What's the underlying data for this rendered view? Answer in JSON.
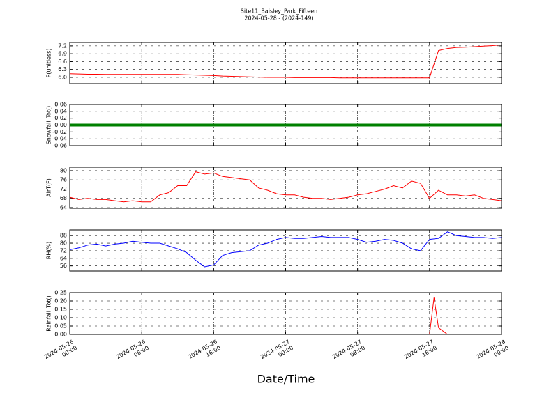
{
  "chart_data": [
    {
      "type": "line",
      "title": "Site11_Baisley_Park_Fifteen",
      "subtitle": "2024-05-28 - (2024-149)",
      "ylabel": "P(unitless)",
      "grid": true,
      "xlim": [
        "2024-05-26 00:00",
        "2024-05-28 00:00"
      ],
      "ylim": [
        5.76,
        7.33
      ],
      "yticks": [
        {
          "value": 6.0,
          "label": "6.0"
        },
        6.3,
        6.6,
        6.9,
        7.2
      ],
      "x": [
        "2024-05-26 00:00",
        "2024-05-26 01:00",
        "2024-05-26 02:00",
        "2024-05-26 03:00",
        "2024-05-26 04:00",
        "2024-05-26 05:00",
        "2024-05-26 06:00",
        "2024-05-26 07:00",
        "2024-05-26 08:00",
        "2024-05-26 09:00",
        "2024-05-26 10:00",
        "2024-05-26 11:00",
        "2024-05-26 12:00",
        "2024-05-26 13:00",
        "2024-05-26 14:00",
        "2024-05-26 15:00",
        "2024-05-26 16:00",
        "2024-05-26 17:00",
        "2024-05-26 18:00",
        "2024-05-26 19:00",
        "2024-05-26 20:00",
        "2024-05-26 21:00",
        "2024-05-26 22:00",
        "2024-05-26 23:00",
        "2024-05-27 00:00",
        "2024-05-27 01:00",
        "2024-05-27 02:00",
        "2024-05-27 03:00",
        "2024-05-27 04:00",
        "2024-05-27 05:00",
        "2024-05-27 06:00",
        "2024-05-27 07:00",
        "2024-05-27 08:00",
        "2024-05-27 09:00",
        "2024-05-27 10:00",
        "2024-05-27 11:00",
        "2024-05-27 12:00",
        "2024-05-27 13:00",
        "2024-05-27 14:00",
        "2024-05-27 15:00",
        "2024-05-27 16:00",
        "2024-05-27 17:00",
        "2024-05-27 18:00",
        "2024-05-27 19:00",
        "2024-05-27 20:00",
        "2024-05-27 21:00",
        "2024-05-27 22:00",
        "2024-05-27 23:00",
        "2024-05-28 00:00"
      ],
      "series": [
        {
          "color": "#ff0000",
          "values": [
            6.14,
            6.13,
            6.12,
            6.12,
            6.11,
            6.11,
            6.11,
            6.11,
            6.11,
            6.11,
            6.11,
            6.11,
            6.11,
            6.1,
            6.09,
            6.08,
            6.07,
            6.05,
            6.04,
            6.03,
            6.02,
            6.01,
            6.0,
            6.0,
            6.0,
            5.99,
            5.99,
            5.99,
            5.99,
            5.99,
            5.98,
            5.98,
            5.98,
            5.98,
            5.98,
            5.98,
            5.98,
            5.98,
            5.98,
            5.98,
            5.98,
            7.02,
            7.1,
            7.14,
            7.15,
            7.17,
            7.19,
            7.21,
            7.24
          ]
        }
      ]
    },
    {
      "type": "line",
      "ylabel": "Snowfall_Tot()",
      "grid": true,
      "xlim": [
        "2024-05-26 00:00",
        "2024-05-28 00:00"
      ],
      "ylim": [
        -0.06,
        0.06
      ],
      "yticks": [
        {
          "value": -0.06,
          "label": "-0.06"
        },
        {
          "value": -0.04,
          "label": "-0.04"
        },
        {
          "value": -0.02,
          "label": "-0.02"
        },
        {
          "value": 0,
          "label": "0.00"
        },
        {
          "value": 0.02,
          "label": "0.02"
        },
        {
          "value": 0.04,
          "label": "0.04"
        },
        0.06
      ],
      "x": [
        "2024-05-26 00:00",
        "2024-05-26 01:00",
        "2024-05-26 02:00",
        "2024-05-26 03:00",
        "2024-05-26 04:00",
        "2024-05-26 05:00",
        "2024-05-26 06:00",
        "2024-05-26 07:00",
        "2024-05-26 08:00",
        "2024-05-26 09:00",
        "2024-05-26 10:00",
        "2024-05-26 11:00",
        "2024-05-26 12:00",
        "2024-05-26 13:00",
        "2024-05-26 14:00",
        "2024-05-26 15:00",
        "2024-05-26 16:00",
        "2024-05-26 17:00",
        "2024-05-26 18:00",
        "2024-05-26 19:00",
        "2024-05-26 20:00",
        "2024-05-26 21:00",
        "2024-05-26 22:00",
        "2024-05-26 23:00",
        "2024-05-27 00:00",
        "2024-05-27 01:00",
        "2024-05-27 02:00",
        "2024-05-27 03:00",
        "2024-05-27 04:00",
        "2024-05-27 05:00",
        "2024-05-27 06:00",
        "2024-05-27 07:00",
        "2024-05-27 08:00",
        "2024-05-27 09:00",
        "2024-05-27 10:00",
        "2024-05-27 11:00",
        "2024-05-27 12:00",
        "2024-05-27 13:00",
        "2024-05-27 14:00",
        "2024-05-27 15:00",
        "2024-05-27 16:00",
        "2024-05-27 17:00",
        "2024-05-27 18:00",
        "2024-05-27 19:00",
        "2024-05-27 20:00",
        "2024-05-27 21:00",
        "2024-05-27 22:00",
        "2024-05-27 23:00",
        "2024-05-28 00:00"
      ],
      "series": [
        {
          "color": "#008000",
          "values": [
            0,
            0,
            0,
            0,
            0,
            0,
            0,
            0,
            0,
            0,
            0,
            0,
            0,
            0,
            0,
            0,
            0,
            0,
            0,
            0,
            0,
            0,
            0,
            0,
            0,
            0,
            0,
            0,
            0,
            0,
            0,
            0,
            0,
            0,
            0,
            0,
            0,
            0,
            0,
            0,
            0,
            0,
            0,
            0,
            0,
            0,
            0,
            0,
            0
          ]
        }
      ]
    },
    {
      "type": "line",
      "ylabel": "AirT(F)",
      "grid": true,
      "xlim": [
        "2024-05-26 00:00",
        "2024-05-28 00:00"
      ],
      "ylim": [
        63.7,
        81.5
      ],
      "yticks": [
        64,
        68,
        72,
        76,
        80
      ],
      "x": [
        "2024-05-26 00:00",
        "2024-05-26 01:00",
        "2024-05-26 02:00",
        "2024-05-26 03:00",
        "2024-05-26 04:00",
        "2024-05-26 05:00",
        "2024-05-26 06:00",
        "2024-05-26 07:00",
        "2024-05-26 08:00",
        "2024-05-26 09:00",
        "2024-05-26 10:00",
        "2024-05-26 11:00",
        "2024-05-26 12:00",
        "2024-05-26 13:00",
        "2024-05-26 14:00",
        "2024-05-26 15:00",
        "2024-05-26 16:00",
        "2024-05-26 17:00",
        "2024-05-26 18:00",
        "2024-05-26 19:00",
        "2024-05-26 20:00",
        "2024-05-26 21:00",
        "2024-05-26 22:00",
        "2024-05-26 23:00",
        "2024-05-27 00:00",
        "2024-05-27 01:00",
        "2024-05-27 02:00",
        "2024-05-27 03:00",
        "2024-05-27 04:00",
        "2024-05-27 05:00",
        "2024-05-27 06:00",
        "2024-05-27 07:00",
        "2024-05-27 08:00",
        "2024-05-27 09:00",
        "2024-05-27 10:00",
        "2024-05-27 11:00",
        "2024-05-27 12:00",
        "2024-05-27 13:00",
        "2024-05-27 14:00",
        "2024-05-27 15:00",
        "2024-05-27 16:00",
        "2024-05-27 17:00",
        "2024-05-27 18:00",
        "2024-05-27 19:00",
        "2024-05-27 20:00",
        "2024-05-27 21:00",
        "2024-05-27 22:00",
        "2024-05-27 23:00",
        "2024-05-28 00:00"
      ],
      "series": [
        {
          "color": "#ff0000",
          "values": [
            68.5,
            67.5,
            68,
            67.5,
            67.5,
            67,
            66.5,
            67,
            66.5,
            66.5,
            69.5,
            70.5,
            73.5,
            73.5,
            79.5,
            78.5,
            79,
            77.5,
            77,
            76.5,
            76,
            72.5,
            71.5,
            70,
            69.5,
            69.5,
            68.5,
            68,
            68,
            67.5,
            68,
            68.5,
            69.5,
            70,
            71,
            72,
            73.5,
            72.5,
            75.5,
            74.5,
            68,
            71.5,
            69.5,
            69.5,
            69,
            69.5,
            68,
            67.5,
            67
          ]
        }
      ]
    },
    {
      "type": "line",
      "ylabel": "RH(%)",
      "grid": true,
      "xlim": [
        "2024-05-26 00:00",
        "2024-05-28 00:00"
      ],
      "ylim": [
        50.6,
        94
      ],
      "yticks": [
        56,
        64,
        72,
        80,
        88
      ],
      "x": [
        "2024-05-26 00:00",
        "2024-05-26 01:00",
        "2024-05-26 02:00",
        "2024-05-26 03:00",
        "2024-05-26 04:00",
        "2024-05-26 05:00",
        "2024-05-26 06:00",
        "2024-05-26 07:00",
        "2024-05-26 08:00",
        "2024-05-26 09:00",
        "2024-05-26 10:00",
        "2024-05-26 11:00",
        "2024-05-26 12:00",
        "2024-05-26 13:00",
        "2024-05-26 14:00",
        "2024-05-26 15:00",
        "2024-05-26 16:00",
        "2024-05-26 17:00",
        "2024-05-26 18:00",
        "2024-05-26 19:00",
        "2024-05-26 20:00",
        "2024-05-26 21:00",
        "2024-05-26 22:00",
        "2024-05-26 23:00",
        "2024-05-27 00:00",
        "2024-05-27 01:00",
        "2024-05-27 02:00",
        "2024-05-27 03:00",
        "2024-05-27 04:00",
        "2024-05-27 05:00",
        "2024-05-27 06:00",
        "2024-05-27 07:00",
        "2024-05-27 08:00",
        "2024-05-27 09:00",
        "2024-05-27 10:00",
        "2024-05-27 11:00",
        "2024-05-27 12:00",
        "2024-05-27 13:00",
        "2024-05-27 14:00",
        "2024-05-27 15:00",
        "2024-05-27 16:00",
        "2024-05-27 17:00",
        "2024-05-27 18:00",
        "2024-05-27 19:00",
        "2024-05-27 20:00",
        "2024-05-27 21:00",
        "2024-05-27 22:00",
        "2024-05-27 23:00",
        "2024-05-28 00:00"
      ],
      "series": [
        {
          "color": "#0000ff",
          "values": [
            73,
            75,
            78,
            79,
            77,
            79,
            80,
            82,
            81,
            80,
            80,
            77,
            74,
            70,
            62,
            55,
            57,
            67,
            70,
            71,
            72,
            78,
            80,
            84,
            86,
            85,
            85,
            86,
            87,
            86,
            86,
            86,
            84,
            81,
            82,
            84,
            83,
            80,
            74,
            72,
            84,
            85,
            92,
            88,
            87,
            86,
            86,
            85,
            86
          ]
        }
      ]
    },
    {
      "type": "line",
      "ylabel": "Rainfall_Tot()",
      "xlabel": "Date/Time",
      "grid": true,
      "xlim": [
        "2024-05-26 00:00",
        "2024-05-28 00:00"
      ],
      "ylim": [
        0,
        0.25
      ],
      "yticks": [
        {
          "value": 0,
          "label": "0.00"
        },
        {
          "value": 0.05,
          "label": "0.05"
        },
        {
          "value": 0.1,
          "label": "0.10"
        },
        0.15,
        {
          "value": 0.2,
          "label": "0.20"
        },
        0.25
      ],
      "xticks": [
        {
          "value": "2024-05-26 00:00",
          "label": "2024-05-26\n00:00"
        },
        {
          "value": "2024-05-26 08:00",
          "label": "2024-05-26\n08:00"
        },
        {
          "value": "2024-05-26 16:00",
          "label": "2024-05-26\n16:00"
        },
        {
          "value": "2024-05-27 00:00",
          "label": "2024-05-27\n00:00"
        },
        {
          "value": "2024-05-27 08:00",
          "label": "2024-05-27\n08:00"
        },
        {
          "value": "2024-05-27 16:00",
          "label": "2024-05-27\n16:00"
        },
        {
          "value": "2024-05-28 00:00",
          "label": "2024-05-28\n00:00"
        }
      ],
      "x": [
        "2024-05-26 00:00",
        "2024-05-26 01:00",
        "2024-05-26 02:00",
        "2024-05-26 03:00",
        "2024-05-26 04:00",
        "2024-05-26 05:00",
        "2024-05-26 06:00",
        "2024-05-26 07:00",
        "2024-05-26 08:00",
        "2024-05-26 09:00",
        "2024-05-26 10:00",
        "2024-05-26 11:00",
        "2024-05-26 12:00",
        "2024-05-26 13:00",
        "2024-05-26 14:00",
        "2024-05-26 15:00",
        "2024-05-26 16:00",
        "2024-05-26 17:00",
        "2024-05-26 18:00",
        "2024-05-26 19:00",
        "2024-05-26 20:00",
        "2024-05-26 21:00",
        "2024-05-26 22:00",
        "2024-05-26 23:00",
        "2024-05-27 00:00",
        "2024-05-27 01:00",
        "2024-05-27 02:00",
        "2024-05-27 03:00",
        "2024-05-27 04:00",
        "2024-05-27 05:00",
        "2024-05-27 06:00",
        "2024-05-27 07:00",
        "2024-05-27 08:00",
        "2024-05-27 09:00",
        "2024-05-27 10:00",
        "2024-05-27 11:00",
        "2024-05-27 12:00",
        "2024-05-27 13:00",
        "2024-05-27 14:00",
        "2024-05-27 15:00",
        "2024-05-27 16:00",
        "2024-05-27 16:30",
        "2024-05-27 17:00",
        "2024-05-27 18:00",
        "2024-05-27 19:00",
        "2024-05-27 20:00",
        "2024-05-27 21:00",
        "2024-05-27 22:00",
        "2024-05-27 23:00",
        "2024-05-28 00:00"
      ],
      "series": [
        {
          "color": "#ff0000",
          "values": [
            0,
            0,
            0,
            0,
            0,
            0,
            0,
            0,
            0,
            0,
            0,
            0,
            0,
            0,
            0,
            0,
            0,
            0,
            0,
            0,
            0,
            0,
            0,
            0,
            0,
            0,
            0,
            0,
            0,
            0,
            0,
            0,
            0,
            0,
            0,
            0,
            0,
            0,
            0,
            0,
            0,
            0.22,
            0.04,
            0,
            0,
            0,
            0,
            0,
            0,
            0
          ]
        }
      ]
    }
  ]
}
